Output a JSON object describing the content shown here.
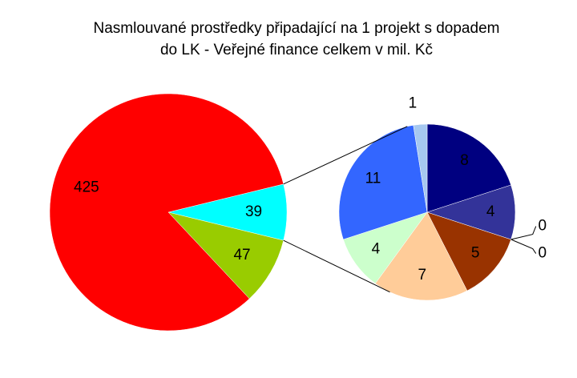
{
  "chart_data": [
    {
      "type": "pie",
      "title": "Nasmlouvané prostředky připadající na 1 projekt s dopadem do LK - Veřejné finance celkem v mil. Kč",
      "values": [
        39,
        47,
        425
      ],
      "colors": [
        "#00ffff",
        "#99cc00",
        "#ff0000"
      ]
    },
    {
      "type": "pie",
      "values": [
        8,
        4,
        0,
        0,
        5,
        7,
        4,
        11,
        1
      ],
      "colors": [
        "#000080",
        "#333399",
        "#ffffff",
        "#ffffff",
        "#993300",
        "#ffcc99",
        "#ccffcc",
        "#3366ff",
        "#a6c8f0"
      ]
    }
  ]
}
